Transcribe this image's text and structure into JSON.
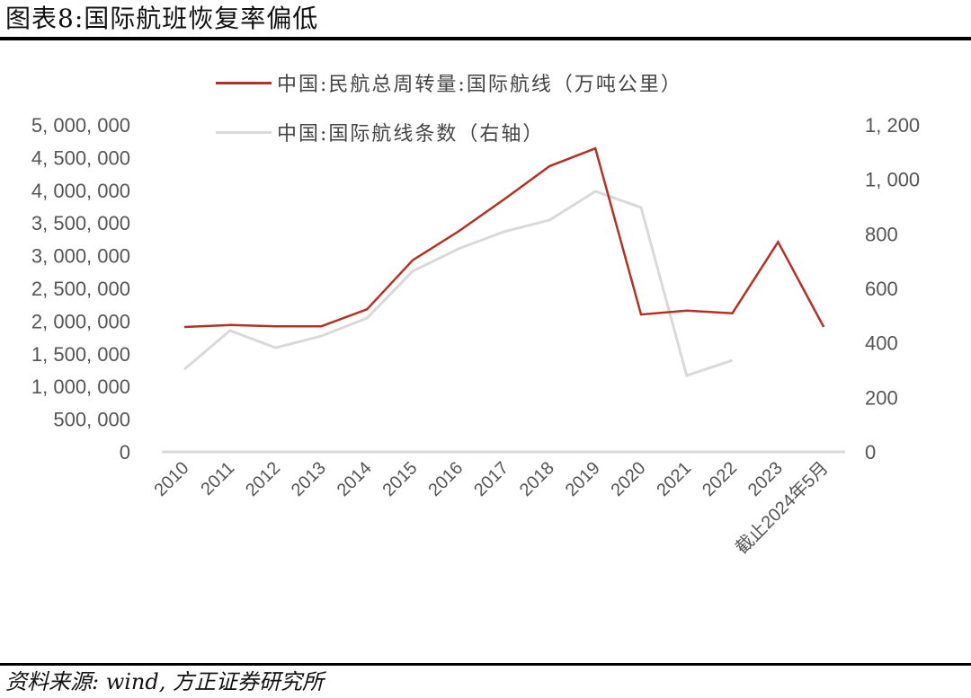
{
  "header": {
    "title": "图表8:国际航班恢复率偏低"
  },
  "footer": {
    "source": "资料来源: wind, 方正证券研究所"
  },
  "colors": {
    "series_primary": "#b03226",
    "series_secondary": "#d9d9d9",
    "axis_line": "#d9d9d9",
    "tick_text": "#555555"
  },
  "legend": {
    "items": [
      {
        "label": "中国:民航总周转量:国际航线（万吨公里）",
        "color": "#b03226"
      },
      {
        "label": "中国:国际航线条数（右轴）",
        "color": "#d9d9d9"
      }
    ]
  },
  "chart_data": {
    "type": "line",
    "title": "图表8:国际航班恢复率偏低",
    "categories": [
      "2010",
      "2011",
      "2012",
      "2013",
      "2014",
      "2015",
      "2016",
      "2017",
      "2018",
      "2019",
      "2020",
      "2021",
      "2022",
      "2023",
      "截止2024年5月"
    ],
    "series": [
      {
        "name": "中国:民航总周转量:国际航线（万吨公里）",
        "axis": "left",
        "color": "#b03226",
        "values": [
          1910000,
          1940000,
          1920000,
          1920000,
          2180000,
          2930000,
          3370000,
          3860000,
          4370000,
          4640000,
          2100000,
          2160000,
          2120000,
          3210000,
          1910000
        ]
      },
      {
        "name": "中国:国际航线条数（右轴）",
        "axis": "right",
        "color": "#d9d9d9",
        "values": [
          303,
          445,
          382,
          425,
          491,
          663,
          745,
          808,
          851,
          956,
          897,
          280,
          336,
          null,
          null
        ]
      }
    ],
    "xlabel": "",
    "ylabel": "",
    "y_left": {
      "range": [
        0,
        5000000
      ],
      "ticks": [
        0,
        500000,
        1000000,
        1500000,
        2000000,
        2500000,
        3000000,
        3500000,
        4000000,
        4500000,
        5000000
      ],
      "tick_labels": [
        "0",
        "500, 000",
        "1, 000, 000",
        "1, 500, 000",
        "2, 000, 000",
        "2, 500, 000",
        "3, 000, 000",
        "3, 500, 000",
        "4, 000, 000",
        "4, 500, 000",
        "5, 000, 000"
      ]
    },
    "y_right": {
      "range": [
        0,
        1200
      ],
      "ticks": [
        0,
        200,
        400,
        600,
        800,
        1000,
        1200
      ],
      "tick_labels": [
        "0",
        "200",
        "400",
        "600",
        "800",
        "1, 000",
        "1, 200"
      ]
    },
    "grid": false,
    "legend_position": "top"
  }
}
